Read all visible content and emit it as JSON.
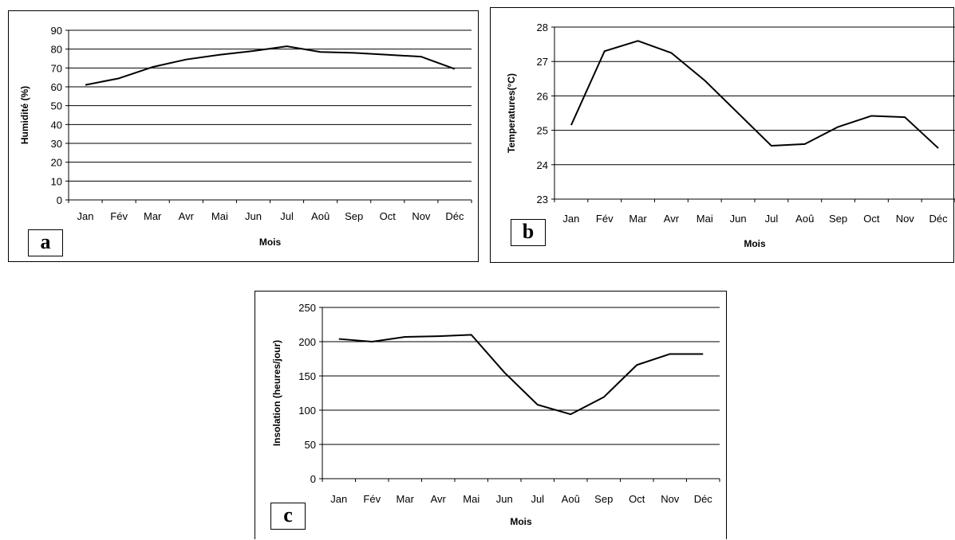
{
  "chart_data": [
    {
      "panel_label": "a",
      "type": "line",
      "categories": [
        "Jan",
        "Fév",
        "Mar",
        "Avr",
        "Mai",
        "Jun",
        "Jul",
        "Aoû",
        "Sep",
        "Oct",
        "Nov",
        "Déc"
      ],
      "values": [
        61,
        64.5,
        70.5,
        74.5,
        77,
        79,
        81.5,
        78.5,
        78,
        77,
        76,
        69.5
      ],
      "xlabel": "Mois",
      "ylabel": "Humidité (%)",
      "ylim": [
        0,
        90
      ],
      "yticks": [
        0,
        10,
        20,
        30,
        40,
        50,
        60,
        70,
        80,
        90
      ],
      "grid": true,
      "line_color": "#000000"
    },
    {
      "panel_label": "b",
      "type": "line",
      "categories": [
        "Jan",
        "Fév",
        "Mar",
        "Avr",
        "Mai",
        "Jun",
        "Jul",
        "Aoû",
        "Sep",
        "Oct",
        "Nov",
        "Déc"
      ],
      "values": [
        25.15,
        27.3,
        27.6,
        27.25,
        26.45,
        25.5,
        24.55,
        24.6,
        25.1,
        25.42,
        25.38,
        24.48
      ],
      "xlabel": "Mois",
      "ylabel": "Temperatures(°C)",
      "ylim": [
        23,
        28
      ],
      "yticks": [
        23,
        24,
        25,
        26,
        27,
        28
      ],
      "grid": true,
      "line_color": "#000000"
    },
    {
      "panel_label": "c",
      "type": "line",
      "categories": [
        "Jan",
        "Fév",
        "Mar",
        "Avr",
        "Mai",
        "Jun",
        "Jul",
        "Aoû",
        "Sep",
        "Oct",
        "Nov",
        "Déc"
      ],
      "values": [
        204,
        200,
        207,
        208,
        210,
        155,
        108,
        94,
        119,
        166,
        182,
        182
      ],
      "xlabel": "Mois",
      "ylabel": "Insolation (heures/jour)",
      "ylim": [
        0,
        250
      ],
      "yticks": [
        0,
        50,
        100,
        150,
        200,
        250
      ],
      "grid": true,
      "line_color": "#000000"
    }
  ]
}
